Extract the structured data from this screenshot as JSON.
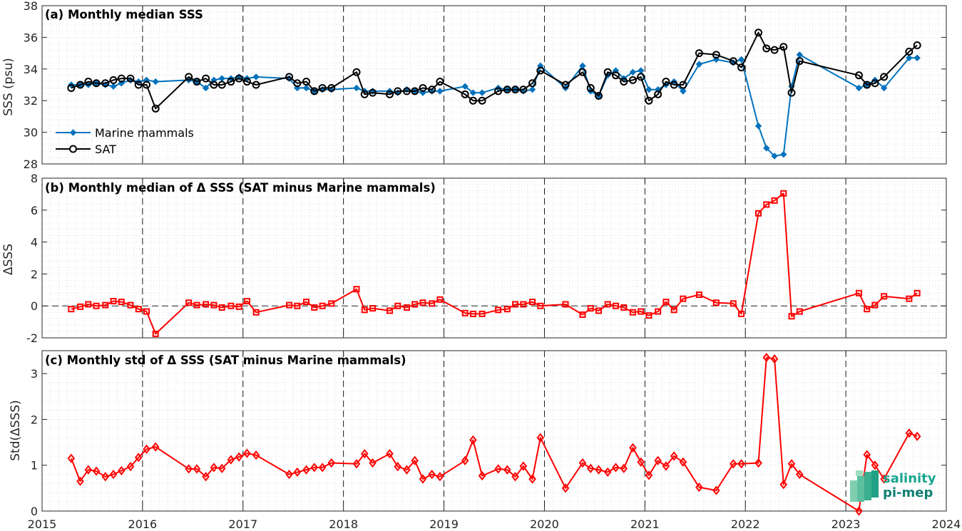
{
  "colors": {
    "marine": "#0072BD",
    "sat": "#000000",
    "delta": "#FF0000",
    "logo": "#18a58e"
  },
  "x_axis": {
    "ticks": [
      2015,
      2016,
      2017,
      2018,
      2019,
      2020,
      2021,
      2022,
      2023,
      2024
    ],
    "range": [
      2015,
      2024
    ]
  },
  "logo": {
    "line1": "salinity",
    "line2": "pi-mep"
  },
  "chart_data": [
    {
      "type": "line",
      "title": "(a) Monthly median SSS",
      "xlabel": "",
      "ylabel": "SSS (psu)",
      "xlim": [
        2015,
        2024
      ],
      "ylim": [
        28,
        38
      ],
      "yticks": [
        28,
        30,
        32,
        34,
        36,
        38
      ],
      "grid": true,
      "legend_position": "lower-left",
      "series": [
        {
          "name": "Marine mammals",
          "marker": "diamond",
          "x": [
            2015.29,
            2015.38,
            2015.46,
            2015.54,
            2015.63,
            2015.71,
            2015.79,
            2015.88,
            2015.96,
            2016.04,
            2016.13,
            2016.46,
            2016.54,
            2016.63,
            2016.71,
            2016.79,
            2016.88,
            2016.96,
            2017.04,
            2017.13,
            2017.46,
            2017.54,
            2017.63,
            2017.71,
            2017.79,
            2017.88,
            2018.13,
            2018.21,
            2018.29,
            2018.46,
            2018.54,
            2018.63,
            2018.71,
            2018.79,
            2018.88,
            2018.96,
            2019.21,
            2019.29,
            2019.38,
            2019.54,
            2019.63,
            2019.71,
            2019.79,
            2019.88,
            2019.96,
            2020.21,
            2020.38,
            2020.46,
            2020.54,
            2020.63,
            2020.71,
            2020.79,
            2020.88,
            2020.96,
            2021.04,
            2021.13,
            2021.21,
            2021.29,
            2021.38,
            2021.54,
            2021.71,
            2021.88,
            2021.96,
            2022.13,
            2022.21,
            2022.29,
            2022.38,
            2022.46,
            2022.54,
            2023.13,
            2023.21,
            2023.29,
            2023.38,
            2023.63,
            2023.71
          ],
          "y": [
            33.0,
            33.0,
            33.0,
            33.1,
            33.0,
            32.9,
            33.1,
            33.3,
            33.2,
            33.3,
            33.2,
            33.3,
            33.2,
            32.8,
            33.3,
            33.4,
            33.4,
            33.5,
            33.4,
            33.5,
            33.4,
            32.8,
            32.8,
            32.6,
            32.7,
            32.7,
            32.8,
            32.6,
            32.6,
            32.6,
            32.5,
            32.7,
            32.6,
            32.5,
            32.6,
            32.6,
            32.9,
            32.5,
            32.5,
            32.8,
            32.7,
            32.7,
            32.6,
            32.7,
            34.2,
            32.8,
            34.2,
            32.6,
            32.3,
            33.6,
            33.9,
            33.4,
            33.8,
            33.9,
            32.7,
            32.7,
            33.0,
            33.2,
            32.6,
            34.3,
            34.6,
            34.4,
            34.6,
            30.4,
            29.0,
            28.5,
            28.6,
            32.9,
            34.9,
            32.8,
            33.0,
            33.3,
            32.8,
            34.7,
            34.7
          ]
        },
        {
          "name": "SAT",
          "marker": "circle",
          "x": [
            2015.29,
            2015.38,
            2015.46,
            2015.54,
            2015.63,
            2015.71,
            2015.79,
            2015.88,
            2015.96,
            2016.04,
            2016.13,
            2016.46,
            2016.54,
            2016.63,
            2016.71,
            2016.79,
            2016.88,
            2016.96,
            2017.04,
            2017.13,
            2017.46,
            2017.54,
            2017.63,
            2017.71,
            2017.79,
            2017.88,
            2018.13,
            2018.21,
            2018.29,
            2018.46,
            2018.54,
            2018.63,
            2018.71,
            2018.79,
            2018.88,
            2018.96,
            2019.21,
            2019.29,
            2019.38,
            2019.54,
            2019.63,
            2019.71,
            2019.79,
            2019.88,
            2019.96,
            2020.21,
            2020.38,
            2020.46,
            2020.54,
            2020.63,
            2020.71,
            2020.79,
            2020.88,
            2020.96,
            2021.04,
            2021.13,
            2021.21,
            2021.29,
            2021.38,
            2021.54,
            2021.71,
            2021.88,
            2021.96,
            2022.13,
            2022.21,
            2022.29,
            2022.38,
            2022.46,
            2022.54,
            2023.13,
            2023.21,
            2023.29,
            2023.38,
            2023.63,
            2023.71
          ],
          "y": [
            32.8,
            33.0,
            33.2,
            33.1,
            33.1,
            33.3,
            33.4,
            33.4,
            33.0,
            33.0,
            31.5,
            33.5,
            33.2,
            33.4,
            33.0,
            33.0,
            33.2,
            33.4,
            33.2,
            33.0,
            33.5,
            33.1,
            33.2,
            32.6,
            32.8,
            32.8,
            33.8,
            32.4,
            32.5,
            32.4,
            32.6,
            32.6,
            32.6,
            32.8,
            32.7,
            33.2,
            32.4,
            32.0,
            32.0,
            32.6,
            32.7,
            32.7,
            32.7,
            33.1,
            33.9,
            33.0,
            33.8,
            32.8,
            32.3,
            33.8,
            33.6,
            33.2,
            33.3,
            33.5,
            32.0,
            32.4,
            33.2,
            33.0,
            33.0,
            35.0,
            34.9,
            34.5,
            34.1,
            36.3,
            35.3,
            35.2,
            35.4,
            32.5,
            34.5,
            33.6,
            33.0,
            33.1,
            33.5,
            35.1,
            35.5
          ]
        }
      ]
    },
    {
      "type": "line",
      "title": "(b) Monthly median of Δ SSS (SAT minus Marine mammals)",
      "xlabel": "",
      "ylabel": "ΔSSS",
      "xlim": [
        2015,
        2024
      ],
      "ylim": [
        -2,
        8
      ],
      "yticks": [
        -2,
        0,
        2,
        4,
        6,
        8
      ],
      "grid": true,
      "zero_line": true,
      "series": [
        {
          "marker": "square",
          "x": [
            2015.29,
            2015.38,
            2015.46,
            2015.54,
            2015.63,
            2015.71,
            2015.79,
            2015.88,
            2015.96,
            2016.04,
            2016.13,
            2016.46,
            2016.54,
            2016.63,
            2016.71,
            2016.79,
            2016.88,
            2016.96,
            2017.04,
            2017.13,
            2017.46,
            2017.54,
            2017.63,
            2017.71,
            2017.79,
            2017.88,
            2018.13,
            2018.21,
            2018.29,
            2018.46,
            2018.54,
            2018.63,
            2018.71,
            2018.79,
            2018.88,
            2018.96,
            2019.21,
            2019.29,
            2019.38,
            2019.54,
            2019.63,
            2019.71,
            2019.79,
            2019.88,
            2019.96,
            2020.21,
            2020.38,
            2020.46,
            2020.54,
            2020.63,
            2020.71,
            2020.79,
            2020.88,
            2020.96,
            2021.04,
            2021.13,
            2021.21,
            2021.29,
            2021.38,
            2021.54,
            2021.71,
            2021.88,
            2021.96,
            2022.13,
            2022.21,
            2022.29,
            2022.38,
            2022.46,
            2022.54,
            2023.13,
            2023.21,
            2023.29,
            2023.38,
            2023.63,
            2023.71
          ],
          "y": [
            -0.2,
            -0.05,
            0.1,
            0.0,
            0.05,
            0.3,
            0.25,
            0.05,
            -0.2,
            -0.35,
            -1.75,
            0.2,
            0.05,
            0.1,
            0.05,
            -0.1,
            0.0,
            -0.05,
            0.3,
            -0.4,
            0.05,
            0.0,
            0.25,
            -0.1,
            0.0,
            0.15,
            1.05,
            -0.25,
            -0.15,
            -0.3,
            0.0,
            -0.1,
            0.1,
            0.2,
            0.15,
            0.4,
            -0.45,
            -0.5,
            -0.5,
            -0.25,
            -0.2,
            0.1,
            0.1,
            0.25,
            0.0,
            0.1,
            -0.55,
            -0.15,
            -0.3,
            0.1,
            0.0,
            -0.1,
            -0.4,
            -0.35,
            -0.6,
            -0.35,
            0.25,
            -0.25,
            0.45,
            0.7,
            0.2,
            0.15,
            -0.5,
            5.8,
            6.35,
            6.6,
            7.05,
            -0.65,
            -0.35,
            0.8,
            -0.2,
            0.05,
            0.6,
            0.45,
            0.8
          ]
        }
      ]
    },
    {
      "type": "line",
      "title": "(c) Monthly std of Δ SSS (SAT minus Marine mammals)",
      "xlabel": "",
      "ylabel": "Std(ΔSSS)",
      "xlim": [
        2015,
        2024
      ],
      "ylim": [
        0,
        3.5
      ],
      "yticks": [
        0,
        1,
        2,
        3
      ],
      "grid": true,
      "series": [
        {
          "marker": "diamond",
          "x": [
            2015.29,
            2015.38,
            2015.46,
            2015.54,
            2015.63,
            2015.71,
            2015.79,
            2015.88,
            2015.96,
            2016.04,
            2016.13,
            2016.46,
            2016.54,
            2016.63,
            2016.71,
            2016.79,
            2016.88,
            2016.96,
            2017.04,
            2017.13,
            2017.46,
            2017.54,
            2017.63,
            2017.71,
            2017.79,
            2017.88,
            2018.13,
            2018.21,
            2018.29,
            2018.46,
            2018.54,
            2018.63,
            2018.71,
            2018.79,
            2018.88,
            2018.96,
            2019.21,
            2019.29,
            2019.38,
            2019.54,
            2019.63,
            2019.71,
            2019.79,
            2019.88,
            2019.96,
            2020.21,
            2020.38,
            2020.46,
            2020.54,
            2020.63,
            2020.71,
            2020.79,
            2020.88,
            2020.96,
            2021.04,
            2021.13,
            2021.21,
            2021.29,
            2021.38,
            2021.54,
            2021.71,
            2021.88,
            2021.96,
            2022.13,
            2022.21,
            2022.29,
            2022.38,
            2022.46,
            2022.54,
            2023.13,
            2023.21,
            2023.29,
            2023.38,
            2023.63,
            2023.71
          ],
          "y": [
            1.15,
            0.65,
            0.9,
            0.87,
            0.75,
            0.8,
            0.88,
            0.97,
            1.17,
            1.35,
            1.4,
            0.92,
            0.92,
            0.75,
            0.95,
            0.93,
            1.12,
            1.18,
            1.26,
            1.22,
            0.8,
            0.85,
            0.9,
            0.95,
            0.95,
            1.05,
            1.03,
            1.25,
            1.05,
            1.25,
            0.97,
            0.9,
            1.1,
            0.7,
            0.8,
            0.75,
            1.1,
            1.55,
            0.77,
            0.92,
            0.9,
            0.75,
            0.98,
            0.7,
            1.6,
            0.5,
            1.05,
            0.93,
            0.9,
            0.85,
            0.95,
            0.93,
            1.38,
            1.07,
            0.78,
            1.1,
            0.98,
            1.2,
            1.07,
            0.52,
            0.45,
            1.03,
            1.03,
            1.05,
            3.35,
            3.32,
            0.58,
            1.03,
            0.8,
            0.0,
            1.23,
            1.0,
            0.7,
            1.7,
            1.63
          ]
        }
      ]
    }
  ]
}
